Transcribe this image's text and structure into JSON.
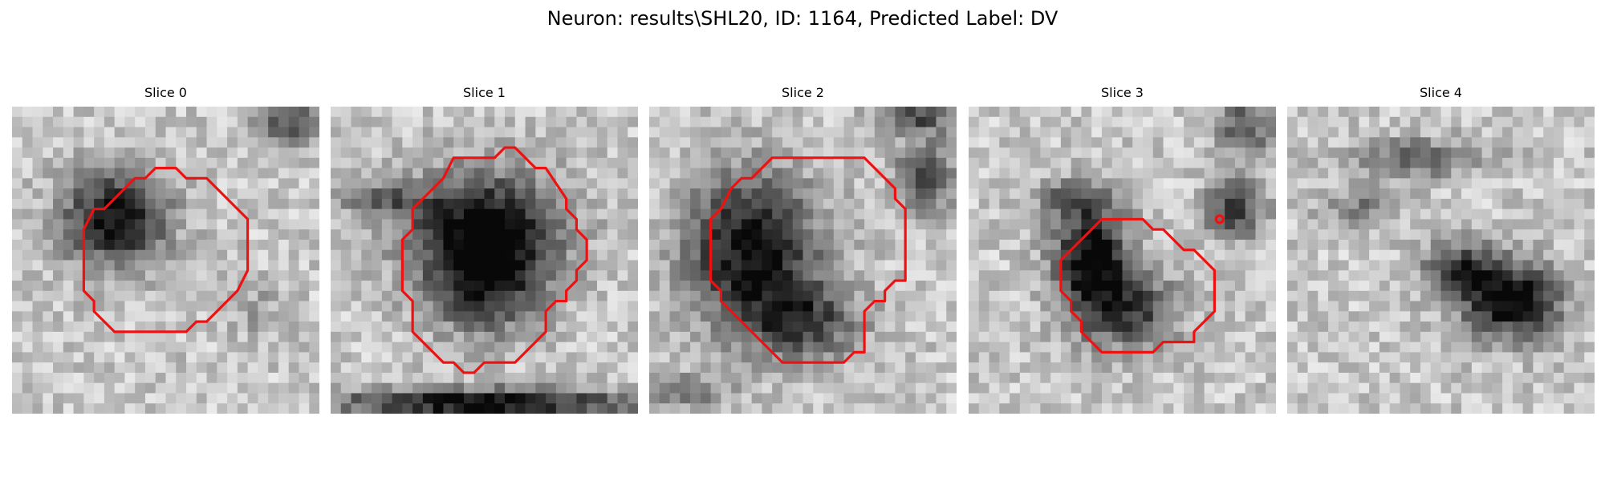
{
  "figure": {
    "title": "Neuron: results\\SHL20, ID: 1164, Predicted Label: DV"
  },
  "contour_color": "#ee1111",
  "panels": [
    {
      "title": "Slice 0",
      "has_contour": true
    },
    {
      "title": "Slice 1",
      "has_contour": true
    },
    {
      "title": "Slice 2",
      "has_contour": true
    },
    {
      "title": "Slice 3",
      "has_contour": true
    },
    {
      "title": "Slice 4",
      "has_contour": false
    }
  ]
}
